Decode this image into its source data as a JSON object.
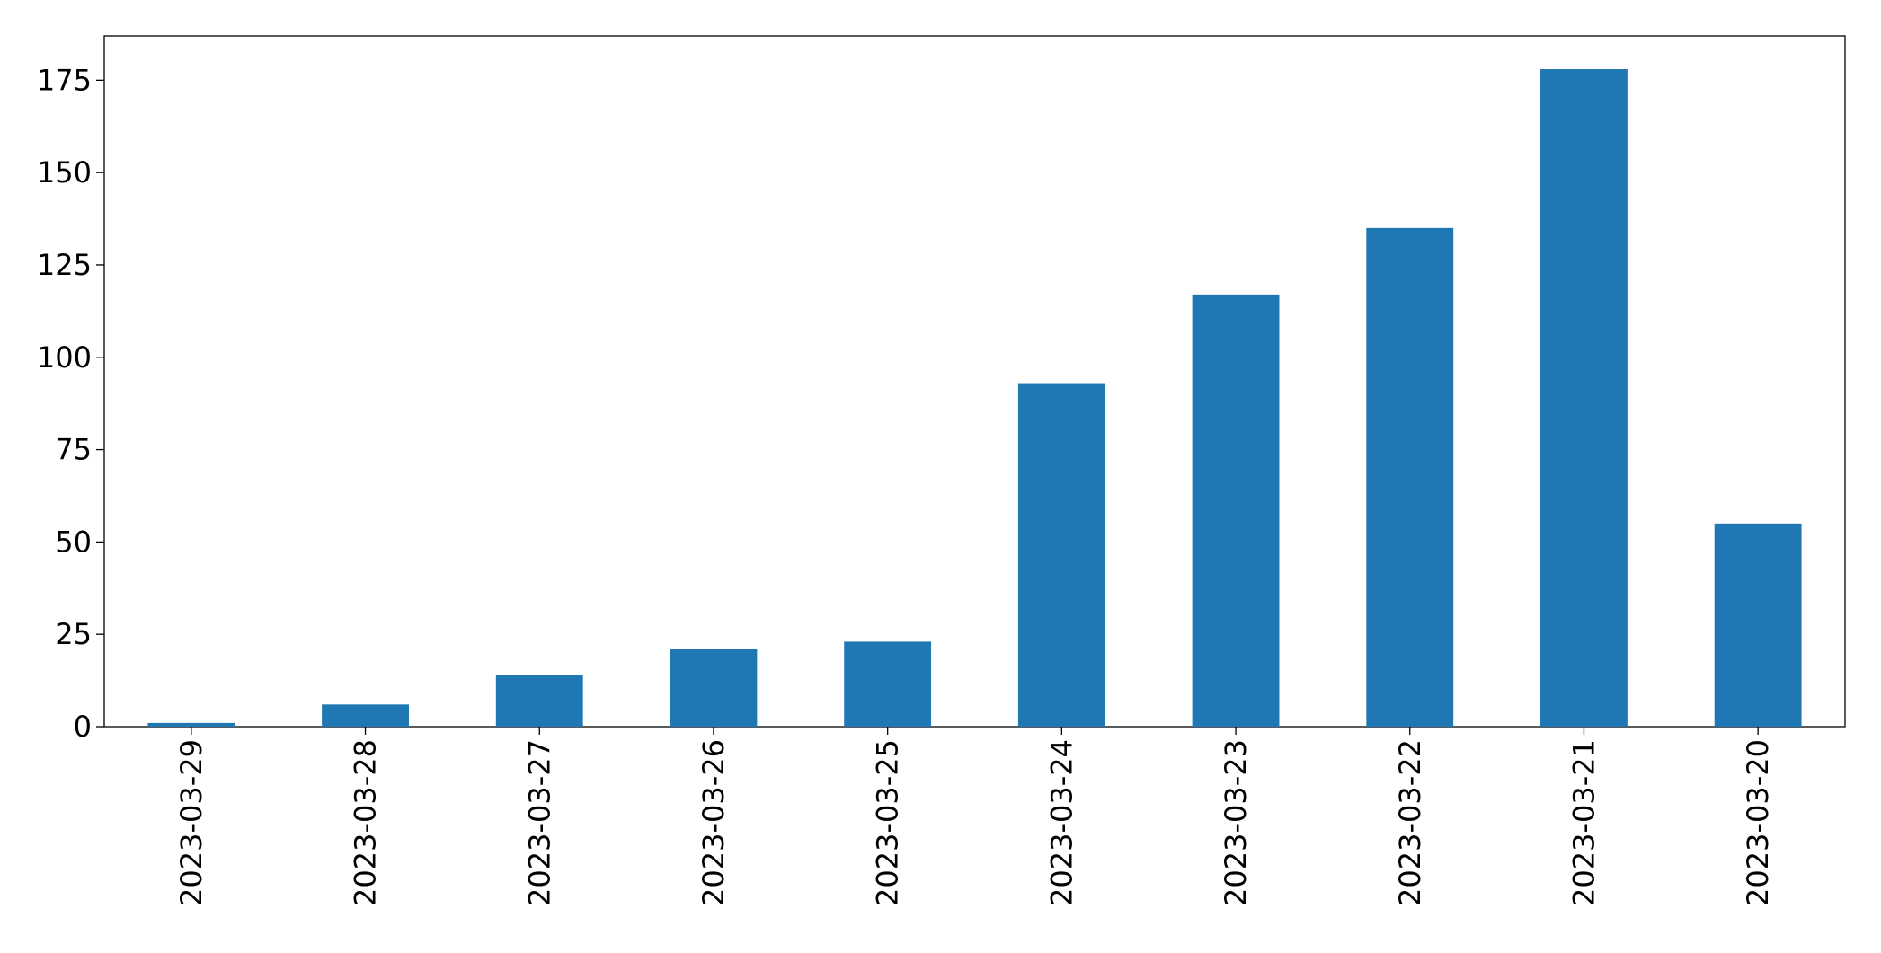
{
  "chart_data": {
    "type": "bar",
    "categories": [
      "2023-03-29",
      "2023-03-28",
      "2023-03-27",
      "2023-03-26",
      "2023-03-25",
      "2023-03-24",
      "2023-03-23",
      "2023-03-22",
      "2023-03-21",
      "2023-03-20"
    ],
    "values": [
      1,
      6,
      14,
      21,
      23,
      93,
      117,
      135,
      178,
      55
    ],
    "color": "#1f77b4",
    "ylim": [
      0,
      187
    ],
    "yticks": [
      0,
      25,
      50,
      75,
      100,
      125,
      150,
      175
    ],
    "grid": false
  }
}
